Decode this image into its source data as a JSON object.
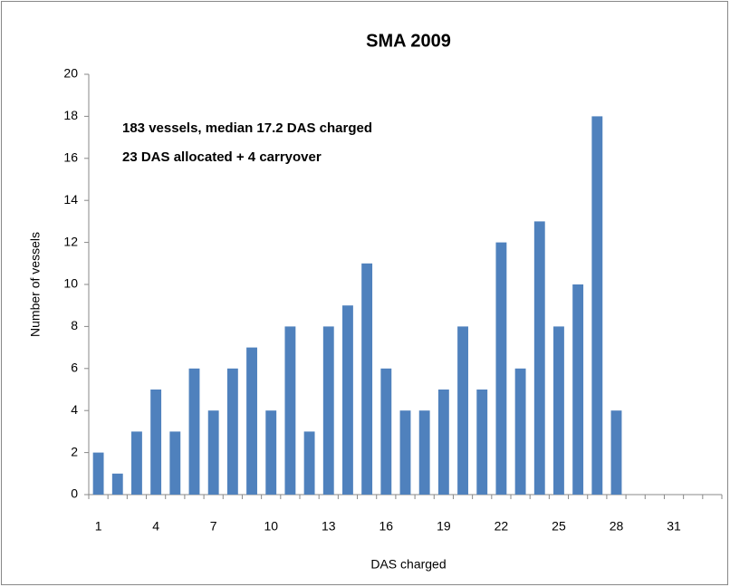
{
  "chart_data": {
    "type": "bar",
    "title": "SMA 2009",
    "annotations": [
      "183 vessels, median 17.2 DAS charged",
      "23 DAS allocated + 4 carryover"
    ],
    "x_label": "DAS charged",
    "y_label": "Number of vessels",
    "categories": [
      "1",
      null,
      null,
      "4",
      null,
      null,
      "7",
      null,
      null,
      "10",
      null,
      null,
      "13",
      null,
      null,
      "16",
      null,
      null,
      "19",
      null,
      null,
      "22",
      null,
      null,
      "25",
      null,
      null,
      "28",
      null,
      null,
      "31",
      null,
      null
    ],
    "values": [
      2,
      1,
      3,
      5,
      3,
      6,
      4,
      6,
      7,
      4,
      8,
      3,
      8,
      9,
      11,
      6,
      4,
      4,
      5,
      8,
      5,
      12,
      6,
      13,
      8,
      10,
      18,
      4,
      0,
      0,
      0,
      0,
      0
    ],
    "color": "#4f81bd",
    "ylim": [
      0,
      20
    ],
    "yticks": [
      0,
      2,
      4,
      6,
      8,
      10,
      12,
      14,
      16,
      18,
      20
    ],
    "grid": false
  }
}
